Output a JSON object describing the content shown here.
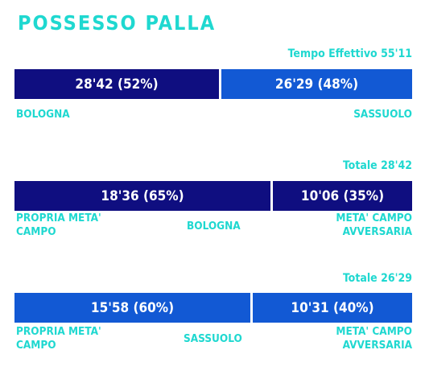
{
  "title": "POSSESSO PALLA",
  "colors": {
    "title": "#1fd8d0",
    "dark": "#0f0e80",
    "blue": "#1259d4"
  },
  "chart_data": [
    {
      "type": "bar",
      "title": "POSSESSO PALLA",
      "total_label": "Tempo Effettivo 55'11",
      "segments": [
        {
          "value_label": "28'42 (52%)",
          "percent": 52
        },
        {
          "value_label": "26'29 (48%)",
          "percent": 48
        }
      ],
      "labels": {
        "left": "BOLOGNA",
        "right": "SASSUOLO"
      }
    },
    {
      "type": "bar",
      "total_label": "Totale 28'42",
      "segments": [
        {
          "value_label": "18'36 (65%)",
          "percent": 65
        },
        {
          "value_label": "10'06 (35%)",
          "percent": 35
        }
      ],
      "labels": {
        "left": "PROPRIA META'\nCAMPO",
        "center": "BOLOGNA",
        "right": "META' CAMPO\nAVVERSARIA"
      }
    },
    {
      "type": "bar",
      "total_label": "Totale 26'29",
      "segments": [
        {
          "value_label": "15'58 (60%)",
          "percent": 60
        },
        {
          "value_label": "10'31 (40%)",
          "percent": 40
        }
      ],
      "labels": {
        "left": "PROPRIA META'\nCAMPO",
        "center": "SASSUOLO",
        "right": "META' CAMPO\nAVVERSARIA"
      }
    }
  ]
}
